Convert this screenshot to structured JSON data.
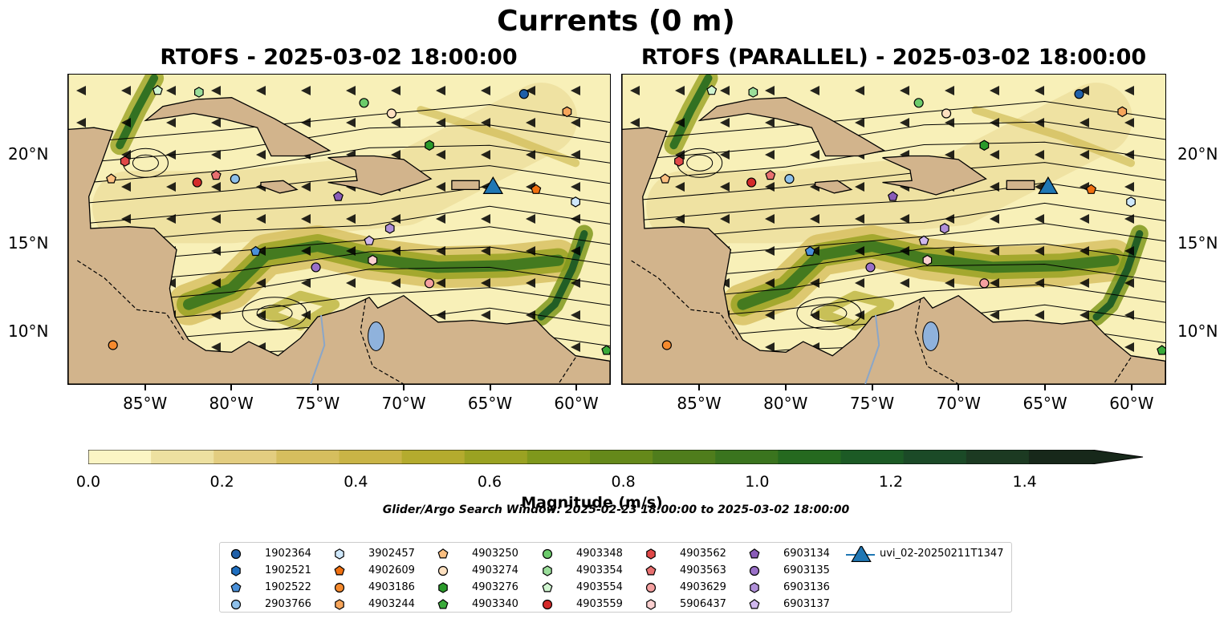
{
  "title": "Currents (0 m)",
  "panels": [
    {
      "title": "RTOFS - 2025-03-02 18:00:00"
    },
    {
      "title": "RTOFS (PARALLEL) - 2025-03-02 18:00:00"
    }
  ],
  "map": {
    "lon_range": [
      -89.5,
      -58.0
    ],
    "lat_range": [
      7.0,
      24.5
    ],
    "lon_ticks": [
      {
        "value": -85,
        "label": "85°W"
      },
      {
        "value": -80,
        "label": "80°W"
      },
      {
        "value": -75,
        "label": "75°W"
      },
      {
        "value": -70,
        "label": "70°W"
      },
      {
        "value": -65,
        "label": "65°W"
      },
      {
        "value": -60,
        "label": "60°W"
      }
    ],
    "lat_ticks": [
      {
        "value": 20,
        "label": "20°N"
      },
      {
        "value": 15,
        "label": "15°N"
      },
      {
        "value": 10,
        "label": "10°N"
      }
    ],
    "colors": {
      "land": "#d2b48c",
      "ocean_low": "#f8f0b8",
      "lake": "#8fb2dc",
      "river": "#8aa6c8"
    }
  },
  "colorbar": {
    "label": "Magnitude (m/s)",
    "min": 0.0,
    "max": 1.5,
    "extend": "max",
    "ticks": [
      "0.0",
      "0.2",
      "0.4",
      "0.6",
      "0.8",
      "1.0",
      "1.2",
      "1.4"
    ],
    "colors": [
      "#fbf5c4",
      "#ede0a0",
      "#e3cd80",
      "#d6be5e",
      "#c9b446",
      "#b4ab2e",
      "#9aa222",
      "#7f981c",
      "#65891a",
      "#4f7d1c",
      "#3a741e",
      "#25691f",
      "#1c5a25",
      "#1b4a27",
      "#1c3a22",
      "#17281a"
    ]
  },
  "search_window": "Glider/Argo Search Window: 2025-02-23 18:00:00 to 2025-03-02 18:00:00",
  "floats": [
    {
      "id": "1902364",
      "marker": "circle",
      "color": "#1f5fa8",
      "lon": -63.0,
      "lat": 23.4
    },
    {
      "id": "1902521",
      "marker": "hexagon",
      "color": "#1f6fc0",
      "lon": null,
      "lat": null
    },
    {
      "id": "1902522",
      "marker": "pentagon",
      "color": "#4a90d9",
      "lon": -78.6,
      "lat": 14.5
    },
    {
      "id": "2903766",
      "marker": "circle",
      "color": "#8ec0ea",
      "lon": -79.8,
      "lat": 18.6
    },
    {
      "id": "3902457",
      "marker": "hexagon",
      "color": "#cfe8fb",
      "lon": -60.0,
      "lat": 17.3
    },
    {
      "id": "4902609",
      "marker": "pentagon",
      "color": "#f07010",
      "lon": -62.3,
      "lat": 18.0
    },
    {
      "id": "4903186",
      "marker": "circle",
      "color": "#f58a2e",
      "lon": -86.9,
      "lat": 9.2
    },
    {
      "id": "4903244",
      "marker": "hexagon",
      "color": "#f7a55a",
      "lon": -60.5,
      "lat": 22.4
    },
    {
      "id": "4903250",
      "marker": "pentagon",
      "color": "#fbbf80",
      "lon": -87.0,
      "lat": 18.6
    },
    {
      "id": "4903274",
      "marker": "circle",
      "color": "#fde0c0",
      "lon": -70.7,
      "lat": 22.3
    },
    {
      "id": "4903276",
      "marker": "hexagon",
      "color": "#2a9a2a",
      "lon": -68.5,
      "lat": 20.5
    },
    {
      "id": "4903340",
      "marker": "pentagon",
      "color": "#3aaa3a",
      "lon": -58.2,
      "lat": 8.9
    },
    {
      "id": "4903348",
      "marker": "circle",
      "color": "#6bcb6b",
      "lon": -72.3,
      "lat": 22.9
    },
    {
      "id": "4903354",
      "marker": "hexagon",
      "color": "#9ade9a",
      "lon": -81.9,
      "lat": 23.5
    },
    {
      "id": "4903554",
      "marker": "pentagon",
      "color": "#d0f5d0",
      "lon": -84.3,
      "lat": 23.6
    },
    {
      "id": "4903559",
      "marker": "circle",
      "color": "#d42a2a",
      "lon": -82.0,
      "lat": 18.4
    },
    {
      "id": "4903562",
      "marker": "hexagon",
      "color": "#e04848",
      "lon": -86.2,
      "lat": 19.6
    },
    {
      "id": "4903563",
      "marker": "pentagon",
      "color": "#e87070",
      "lon": -80.9,
      "lat": 18.8
    },
    {
      "id": "4903629",
      "marker": "circle",
      "color": "#f4a0a0",
      "lon": -68.5,
      "lat": 12.7
    },
    {
      "id": "5906437",
      "marker": "hexagon",
      "color": "#fbd0d0",
      "lon": -71.8,
      "lat": 14.0
    },
    {
      "id": "6903134",
      "marker": "pentagon",
      "color": "#8a5cb8",
      "lon": -73.8,
      "lat": 17.6
    },
    {
      "id": "6903135",
      "marker": "circle",
      "color": "#9a70c8",
      "lon": -75.1,
      "lat": 13.6
    },
    {
      "id": "6903136",
      "marker": "hexagon",
      "color": "#b090d8",
      "lon": -70.8,
      "lat": 15.8
    },
    {
      "id": "6903137",
      "marker": "pentagon",
      "color": "#d0b8ee",
      "lon": -72.0,
      "lat": 15.1
    },
    {
      "id": "uvi_02-20250211T1347",
      "marker": "triangle",
      "color": "#1f77b4",
      "lon": -64.8,
      "lat": 18.2
    }
  ]
}
